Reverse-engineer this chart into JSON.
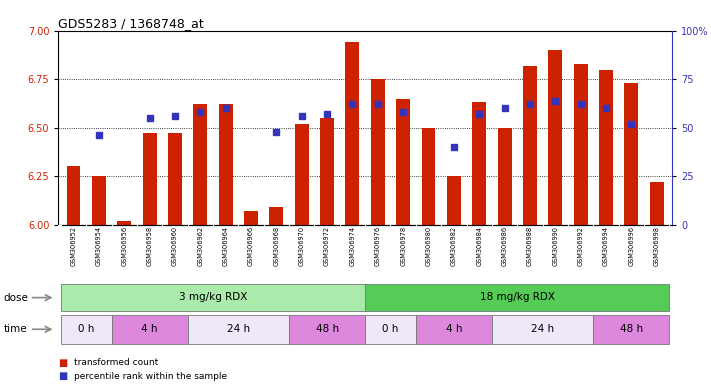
{
  "title": "GDS5283 / 1368748_at",
  "samples": [
    "GSM306952",
    "GSM306954",
    "GSM306956",
    "GSM306958",
    "GSM306960",
    "GSM306962",
    "GSM306964",
    "GSM306966",
    "GSM306968",
    "GSM306970",
    "GSM306972",
    "GSM306974",
    "GSM306976",
    "GSM306978",
    "GSM306980",
    "GSM306982",
    "GSM306984",
    "GSM306986",
    "GSM306988",
    "GSM306990",
    "GSM306992",
    "GSM306994",
    "GSM306996",
    "GSM306998"
  ],
  "bar_values": [
    6.3,
    6.25,
    6.02,
    6.47,
    6.47,
    6.62,
    6.62,
    6.07,
    6.09,
    6.52,
    6.55,
    6.94,
    6.75,
    6.65,
    6.5,
    6.25,
    6.63,
    6.5,
    6.82,
    6.9,
    6.83,
    6.8,
    6.73,
    6.22
  ],
  "dot_values": [
    null,
    6.46,
    null,
    6.55,
    6.56,
    6.58,
    6.6,
    null,
    6.48,
    6.56,
    6.57,
    6.62,
    6.62,
    6.58,
    null,
    6.4,
    6.57,
    6.6,
    6.62,
    6.64,
    6.62,
    6.6,
    6.52,
    null
  ],
  "ylim": [
    6.0,
    7.0
  ],
  "yticks_left": [
    6.0,
    6.25,
    6.5,
    6.75,
    7.0
  ],
  "yticks_right": [
    0,
    25,
    50,
    75,
    100
  ],
  "bar_color": "#cc2200",
  "dot_color": "#3333bb",
  "dose_groups": [
    {
      "label": "3 mg/kg RDX",
      "start": 0,
      "end": 11,
      "color": "#aaeaaa"
    },
    {
      "label": "18 mg/kg RDX",
      "start": 12,
      "end": 23,
      "color": "#55cc55"
    }
  ],
  "time_groups": [
    {
      "label": "0 h",
      "start": 0,
      "end": 1,
      "color": "#f0e8f8"
    },
    {
      "label": "4 h",
      "start": 2,
      "end": 4,
      "color": "#dd88dd"
    },
    {
      "label": "24 h",
      "start": 5,
      "end": 8,
      "color": "#f0e8f8"
    },
    {
      "label": "48 h",
      "start": 9,
      "end": 11,
      "color": "#dd88dd"
    },
    {
      "label": "0 h",
      "start": 12,
      "end": 13,
      "color": "#f0e8f8"
    },
    {
      "label": "4 h",
      "start": 14,
      "end": 16,
      "color": "#dd88dd"
    },
    {
      "label": "24 h",
      "start": 17,
      "end": 20,
      "color": "#f0e8f8"
    },
    {
      "label": "48 h",
      "start": 21,
      "end": 23,
      "color": "#dd88dd"
    }
  ],
  "legend": [
    {
      "label": "transformed count",
      "color": "#cc2200"
    },
    {
      "label": "percentile rank within the sample",
      "color": "#3333bb"
    }
  ]
}
